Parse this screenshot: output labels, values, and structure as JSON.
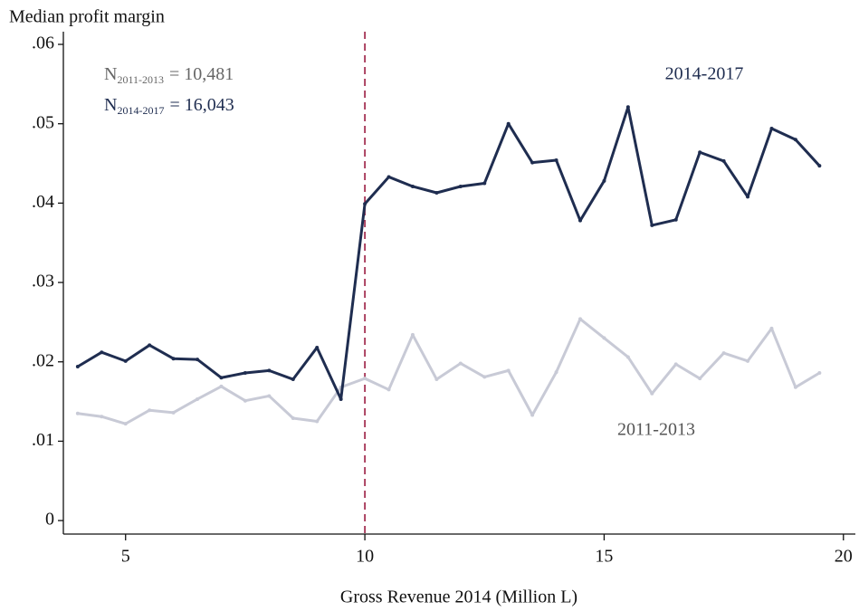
{
  "chart_data": {
    "type": "line",
    "title": "Median profit margin",
    "x_label": "Gross Revenue 2014 (Million L)",
    "x": [
      4,
      4.5,
      5,
      5.5,
      6,
      6.5,
      7,
      7.5,
      8,
      8.5,
      9,
      9.5,
      10,
      10.5,
      11,
      11.5,
      12,
      12.5,
      13,
      13.5,
      14,
      14.5,
      15,
      15.5,
      16,
      16.5,
      17,
      17.5,
      18,
      18.5,
      19,
      19.5
    ],
    "series": [
      {
        "name": "2014-2017",
        "color": "#1f2d50",
        "values": [
          0.0194,
          0.0212,
          0.0201,
          0.0221,
          0.0204,
          0.0203,
          0.018,
          0.0186,
          0.0189,
          0.0178,
          0.0218,
          0.0153,
          0.0399,
          0.0433,
          0.0421,
          0.0413,
          0.0421,
          0.0425,
          0.05,
          0.0451,
          0.0454,
          0.0378,
          0.0428,
          0.0521,
          0.0372,
          0.0379,
          0.0464,
          0.0453,
          0.0408,
          0.0494,
          0.048,
          0.0447
        ]
      },
      {
        "name": "2011-2013",
        "color": "#c8cad6",
        "values": [
          0.0135,
          0.0131,
          0.0122,
          0.0139,
          0.0136,
          0.0153,
          0.0169,
          0.0151,
          0.0157,
          0.0129,
          0.0125,
          0.0168,
          0.0179,
          0.0165,
          0.0234,
          0.0178,
          0.0198,
          0.0181,
          0.0189,
          0.0133,
          0.0187,
          0.0254,
          0.023,
          0.0206,
          0.016,
          0.0197,
          0.0179,
          0.0211,
          0.0201,
          0.0242,
          0.0168,
          0.0186
        ]
      }
    ],
    "xlim": [
      3.7,
      20.25
    ],
    "ylim": [
      -0.0017,
      0.0616
    ],
    "xticks": [
      5,
      10,
      15,
      20
    ],
    "yticks": [
      0,
      {
        "value": 0.01,
        "label": ".01"
      },
      {
        "value": 0.02,
        "label": ".02"
      },
      {
        "value": 0.03,
        "label": ".03"
      },
      {
        "value": 0.04,
        "label": ".04"
      },
      {
        "value": 0.05,
        "label": ".05"
      },
      {
        "value": 0.06,
        "label": ".06"
      }
    ],
    "vline": {
      "x": 10,
      "color": "#9b1b40"
    },
    "annotations": [
      {
        "prefix": "N",
        "subscript": "2011-2013",
        "text": "= 10,481",
        "color": "#666666"
      },
      {
        "prefix": "N",
        "subscript": "2014-2017",
        "text": "= 16,043",
        "color": "#1f2d50"
      }
    ]
  }
}
